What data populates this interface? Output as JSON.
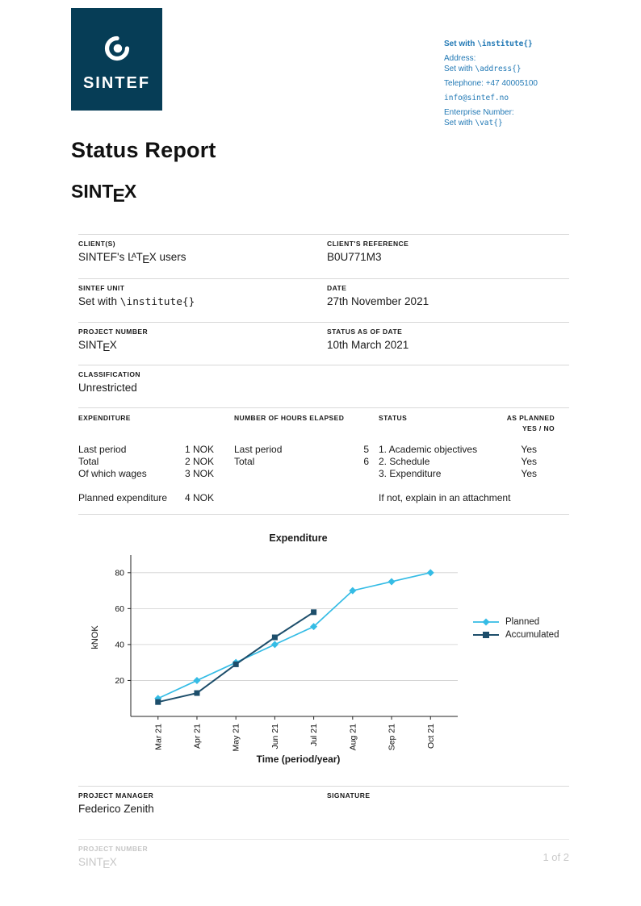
{
  "doc": {
    "title": "Status Report",
    "subtitle_parts": [
      {
        "t": "SINT"
      },
      {
        "t": "E",
        "s": "lax-e"
      },
      {
        "t": "X"
      }
    ]
  },
  "logo": {
    "text": "SINTEF"
  },
  "contact": {
    "lines": [
      {
        "parts": [
          {
            "t": "Set with "
          },
          {
            "t": "\\institute{}",
            "s": "mono"
          }
        ]
      },
      {
        "parts": [
          {
            "t": "Address:"
          }
        ]
      },
      {
        "parts": [
          {
            "t": "Set with "
          },
          {
            "t": "\\address{}",
            "s": "mono"
          }
        ]
      },
      {
        "parts": [
          {
            "t": "Telephone: +47 40005100"
          }
        ]
      },
      {
        "parts": [
          {
            "t": "info@sintef.no",
            "s": "mono"
          }
        ]
      },
      {
        "parts": [
          {
            "t": "Enterprise Number:"
          }
        ]
      },
      {
        "parts": [
          {
            "t": "Set with "
          },
          {
            "t": "\\vat{}",
            "s": "mono"
          }
        ]
      }
    ]
  },
  "fields": {
    "rows": [
      {
        "left": {
          "label": "CLIENT(S)",
          "value_parts": [
            {
              "t": "SINTEF's L"
            },
            {
              "t": "A",
              "s": "lax-a"
            },
            {
              "t": "T"
            },
            {
              "t": "E",
              "s": "lax-e"
            },
            {
              "t": "X"
            },
            {
              "t": " users"
            }
          ]
        },
        "right": {
          "label": "CLIENT'S REFERENCE",
          "value_parts": [
            {
              "t": "B0U771M3"
            }
          ]
        }
      },
      {
        "left": {
          "label": "SINTEF UNIT",
          "value_parts": [
            {
              "t": "Set with "
            },
            {
              "t": "\\institute{}",
              "s": "mono"
            }
          ]
        },
        "right": {
          "label": "DATE",
          "value_parts": [
            {
              "t": "27th November 2021"
            }
          ]
        }
      },
      {
        "left": {
          "label": "PROJECT NUMBER",
          "value_parts": [
            {
              "t": "SINT"
            },
            {
              "t": "E",
              "s": "lax-e"
            },
            {
              "t": "X"
            }
          ]
        },
        "right": {
          "label": "STATUS AS OF DATE",
          "value_parts": [
            {
              "t": "10th March 2021"
            }
          ]
        }
      },
      {
        "left": {
          "label": "CLASSIFICATION",
          "value_parts": [
            {
              "t": "Unrestricted"
            }
          ]
        }
      }
    ]
  },
  "summary": {
    "headers": {
      "expenditure": "EXPENDITURE",
      "hours": "NUMBER OF HOURS ELAPSED",
      "status": "STATUS",
      "as_planned_line1": "AS PLANNED",
      "as_planned_line2": "YES / NO"
    },
    "expenditure_rows": [
      {
        "label": "Last period",
        "value": "1 NOK"
      },
      {
        "label": "Total",
        "value": "2 NOK"
      },
      {
        "label": "Of which wages",
        "value": "3 NOK"
      }
    ],
    "planned_expenditure": {
      "label": "Planned expenditure",
      "value": "4 NOK"
    },
    "hours_rows": [
      {
        "label": "Last period",
        "value": "5"
      },
      {
        "label": "Total",
        "value": "6"
      }
    ],
    "status_rows": [
      "1. Academic objectives",
      "2. Schedule",
      "3. Expenditure"
    ],
    "status_note": "If not, explain in an attachment",
    "as_planned_values": [
      "Yes",
      "Yes",
      "Yes"
    ]
  },
  "chart_data": {
    "type": "line",
    "title": "Expenditure",
    "xlabel": "Time (period/year)",
    "ylabel": "kNOK",
    "categories": [
      "Mar 21",
      "Apr 21",
      "May 21",
      "Jun 21",
      "Jul 21",
      "Aug 21",
      "Sep 21",
      "Oct 21"
    ],
    "yticks": [
      20,
      40,
      60,
      80
    ],
    "ylim": [
      0,
      88
    ],
    "grid": true,
    "legend_position": "right",
    "series": [
      {
        "name": "Planned",
        "color": "#35BCE5",
        "marker": "diamond",
        "values": [
          10,
          20,
          30,
          40,
          50,
          70,
          75,
          80
        ]
      },
      {
        "name": "Accumulated",
        "color": "#1D4E6B",
        "marker": "square",
        "values": [
          8,
          13,
          29,
          44,
          58
        ]
      }
    ]
  },
  "manager": {
    "label": "PROJECT MANAGER",
    "name": "Federico Zenith",
    "signature_label": "SIGNATURE"
  },
  "footer": {
    "label": "PROJECT NUMBER",
    "value_parts": [
      {
        "t": "SINT"
      },
      {
        "t": "E",
        "s": "lax-e"
      },
      {
        "t": "X"
      }
    ],
    "page": "1 of 2"
  },
  "colors": {
    "brand_navy": "#063D56",
    "contact_blue": "#2279B5",
    "planned": "#35BCE5",
    "accumulated": "#1D4E6B"
  }
}
